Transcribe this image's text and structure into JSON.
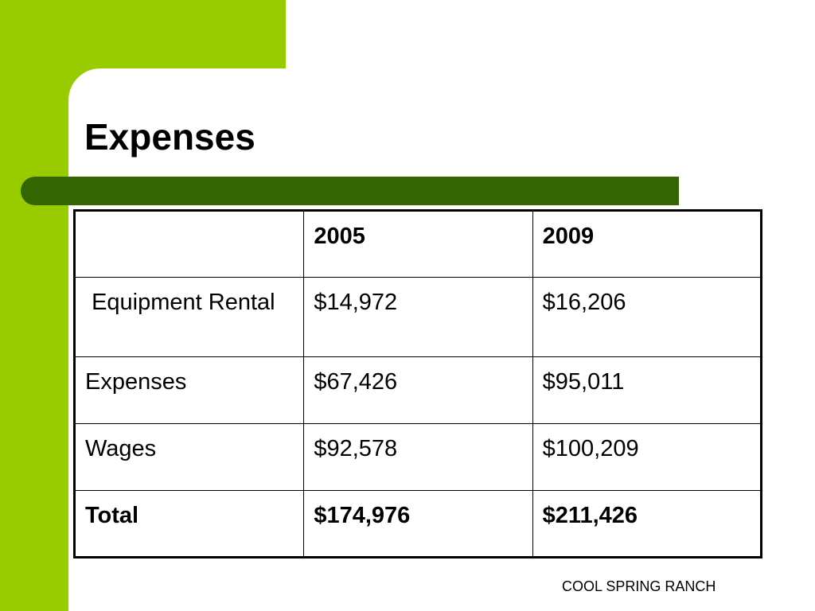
{
  "slide": {
    "title": "Expenses",
    "footer": "COOL SPRING RANCH",
    "colors": {
      "accent_light": "#99cc00",
      "accent_dark": "#336600"
    }
  },
  "table": {
    "headers": [
      "",
      "2005",
      "2009"
    ],
    "rows": [
      {
        "label": " Equipment Rental",
        "y2005": "$14,972",
        "y2009": "$16,206"
      },
      {
        "label": "Expenses",
        "y2005": "$67,426",
        "y2009": "$95,011"
      },
      {
        "label": "Wages",
        "y2005": "$92,578",
        "y2009": "$100,209"
      },
      {
        "label": "Total",
        "y2005": "$174,976",
        "y2009": "$211,426"
      }
    ]
  }
}
